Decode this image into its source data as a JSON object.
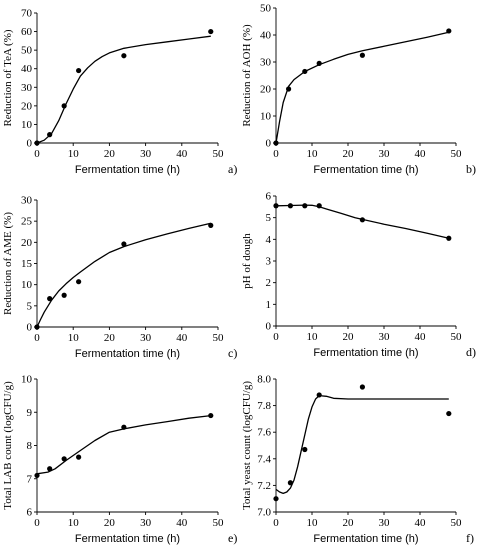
{
  "chart_data": [
    {
      "type": "scatter",
      "panel_label": "a)",
      "xlabel": "Fermentation time (h)",
      "ylabel": "Reduction of TeA (%)",
      "xlim": [
        0,
        50
      ],
      "ylim": [
        0,
        70
      ],
      "xticks": [
        0,
        10,
        20,
        30,
        40,
        50
      ],
      "yticks": [
        0,
        10,
        20,
        30,
        40,
        50,
        60,
        70
      ],
      "ytick_labels": [
        "0",
        "10",
        "20",
        "30",
        "40",
        "50",
        "60",
        "70"
      ],
      "points": [
        [
          0,
          0
        ],
        [
          3.5,
          4.5
        ],
        [
          7.5,
          20
        ],
        [
          11.5,
          39
        ],
        [
          24,
          47
        ],
        [
          48,
          60
        ]
      ],
      "curve": [
        [
          0,
          0
        ],
        [
          2,
          1.5
        ],
        [
          4,
          5
        ],
        [
          6,
          12
        ],
        [
          8,
          21
        ],
        [
          10,
          29
        ],
        [
          12,
          36
        ],
        [
          14,
          40.5
        ],
        [
          16,
          44
        ],
        [
          18,
          46.5
        ],
        [
          20,
          48.5
        ],
        [
          24,
          51
        ],
        [
          30,
          53
        ],
        [
          36,
          54.5
        ],
        [
          42,
          56
        ],
        [
          48,
          57.5
        ]
      ]
    },
    {
      "type": "scatter",
      "panel_label": "b)",
      "xlabel": "Fermentation time (h)",
      "ylabel": "Reduction of AOH (%)",
      "xlim": [
        0,
        50
      ],
      "ylim": [
        0,
        50
      ],
      "xticks": [
        0,
        10,
        20,
        30,
        40,
        50
      ],
      "yticks": [
        0,
        10,
        20,
        30,
        40,
        50
      ],
      "ytick_labels": [
        "0",
        "10",
        "20",
        "30",
        "40",
        "50"
      ],
      "points": [
        [
          0,
          0
        ],
        [
          3.5,
          20
        ],
        [
          8,
          26.5
        ],
        [
          12,
          29.5
        ],
        [
          24,
          32.5
        ],
        [
          48,
          41.5
        ]
      ],
      "curve": [
        [
          0,
          0
        ],
        [
          1,
          8
        ],
        [
          2,
          15
        ],
        [
          3.5,
          21
        ],
        [
          5,
          23.5
        ],
        [
          8,
          26.5
        ],
        [
          12,
          29
        ],
        [
          16,
          31
        ],
        [
          20,
          32.8
        ],
        [
          24,
          34.2
        ],
        [
          30,
          35.8
        ],
        [
          36,
          37.5
        ],
        [
          42,
          39.2
        ],
        [
          48,
          41
        ]
      ]
    },
    {
      "type": "scatter",
      "panel_label": "c)",
      "xlabel": "Fermentation time (h)",
      "ylabel": "Reduction of AME (%)",
      "xlim": [
        0,
        50
      ],
      "ylim": [
        0,
        30
      ],
      "xticks": [
        0,
        10,
        20,
        30,
        40,
        50
      ],
      "yticks": [
        0,
        5,
        10,
        15,
        20,
        25,
        30
      ],
      "ytick_labels": [
        "0",
        "5",
        "10",
        "15",
        "20",
        "25",
        "30"
      ],
      "points": [
        [
          0,
          0
        ],
        [
          3.5,
          6.7
        ],
        [
          7.5,
          7.5
        ],
        [
          11.5,
          10.7
        ],
        [
          24,
          19.6
        ],
        [
          48,
          24
        ]
      ],
      "curve": [
        [
          0,
          0
        ],
        [
          1,
          1.8
        ],
        [
          2,
          3.5
        ],
        [
          4,
          6.3
        ],
        [
          6,
          8.5
        ],
        [
          8,
          10.2
        ],
        [
          10,
          11.7
        ],
        [
          12,
          13
        ],
        [
          16,
          15.5
        ],
        [
          20,
          17.6
        ],
        [
          24,
          19
        ],
        [
          30,
          20.6
        ],
        [
          36,
          22
        ],
        [
          42,
          23.3
        ],
        [
          48,
          24.5
        ]
      ]
    },
    {
      "type": "scatter",
      "panel_label": "d)",
      "xlabel": "Fermentation time (h)",
      "ylabel": "pH of dough",
      "xlim": [
        0,
        50
      ],
      "ylim": [
        0,
        6
      ],
      "xticks": [
        0,
        10,
        20,
        30,
        40,
        50
      ],
      "yticks": [
        0,
        1,
        2,
        3,
        4,
        5,
        6
      ],
      "ytick_labels": [
        "0",
        "1",
        "2",
        "3",
        "4",
        "5",
        "6"
      ],
      "points": [
        [
          0,
          5.55
        ],
        [
          4,
          5.55
        ],
        [
          8,
          5.55
        ],
        [
          12,
          5.55
        ],
        [
          24,
          4.9
        ],
        [
          48,
          4.05
        ]
      ],
      "curve": [
        [
          0,
          5.55
        ],
        [
          4,
          5.56
        ],
        [
          8,
          5.58
        ],
        [
          10,
          5.57
        ],
        [
          12,
          5.5
        ],
        [
          14,
          5.4
        ],
        [
          18,
          5.2
        ],
        [
          22,
          5.0
        ],
        [
          24,
          4.92
        ],
        [
          30,
          4.7
        ],
        [
          36,
          4.5
        ],
        [
          42,
          4.28
        ],
        [
          48,
          4.05
        ]
      ]
    },
    {
      "type": "scatter",
      "panel_label": "e)",
      "xlabel": "Fermentation time (h)",
      "ylabel": "Total LAB count (logCFU/g)",
      "xlim": [
        0,
        50
      ],
      "ylim": [
        6,
        10
      ],
      "xticks": [
        0,
        10,
        20,
        30,
        40,
        50
      ],
      "yticks": [
        6,
        7,
        8,
        9,
        10
      ],
      "ytick_labels": [
        "6",
        "7",
        "8",
        "9",
        "10"
      ],
      "points": [
        [
          0,
          7.1
        ],
        [
          3.5,
          7.3
        ],
        [
          7.5,
          7.6
        ],
        [
          11.5,
          7.65
        ],
        [
          24,
          8.55
        ],
        [
          48,
          8.9
        ]
      ],
      "curve": [
        [
          0,
          7.15
        ],
        [
          3,
          7.2
        ],
        [
          5,
          7.3
        ],
        [
          8,
          7.55
        ],
        [
          12,
          7.85
        ],
        [
          16,
          8.15
        ],
        [
          20,
          8.4
        ],
        [
          24,
          8.5
        ],
        [
          30,
          8.62
        ],
        [
          36,
          8.72
        ],
        [
          42,
          8.82
        ],
        [
          48,
          8.9
        ]
      ]
    },
    {
      "type": "scatter",
      "panel_label": "f)",
      "xlabel": "Fermentation time (h)",
      "ylabel": "Total yeast count (logCFU/g)",
      "xlim": [
        0,
        50
      ],
      "ylim": [
        7.0,
        8.0
      ],
      "xticks": [
        0,
        10,
        20,
        30,
        40,
        50
      ],
      "yticks": [
        7.0,
        7.2,
        7.4,
        7.6,
        7.8,
        8.0
      ],
      "ytick_labels": [
        "7.0",
        "7.2",
        "7.4",
        "7.6",
        "7.8",
        "8.0"
      ],
      "points": [
        [
          0,
          7.1
        ],
        [
          4,
          7.22
        ],
        [
          8,
          7.47
        ],
        [
          12,
          7.88
        ],
        [
          24,
          7.94
        ],
        [
          48,
          7.74
        ]
      ],
      "curve": [
        [
          0,
          7.17
        ],
        [
          1,
          7.15
        ],
        [
          2,
          7.14
        ],
        [
          3,
          7.15
        ],
        [
          4,
          7.18
        ],
        [
          5,
          7.24
        ],
        [
          6,
          7.34
        ],
        [
          7,
          7.46
        ],
        [
          8,
          7.58
        ],
        [
          9,
          7.7
        ],
        [
          10,
          7.79
        ],
        [
          11,
          7.85
        ],
        [
          12,
          7.875
        ],
        [
          14,
          7.87
        ],
        [
          16,
          7.855
        ],
        [
          20,
          7.85
        ],
        [
          30,
          7.85
        ],
        [
          48,
          7.85
        ]
      ]
    }
  ]
}
